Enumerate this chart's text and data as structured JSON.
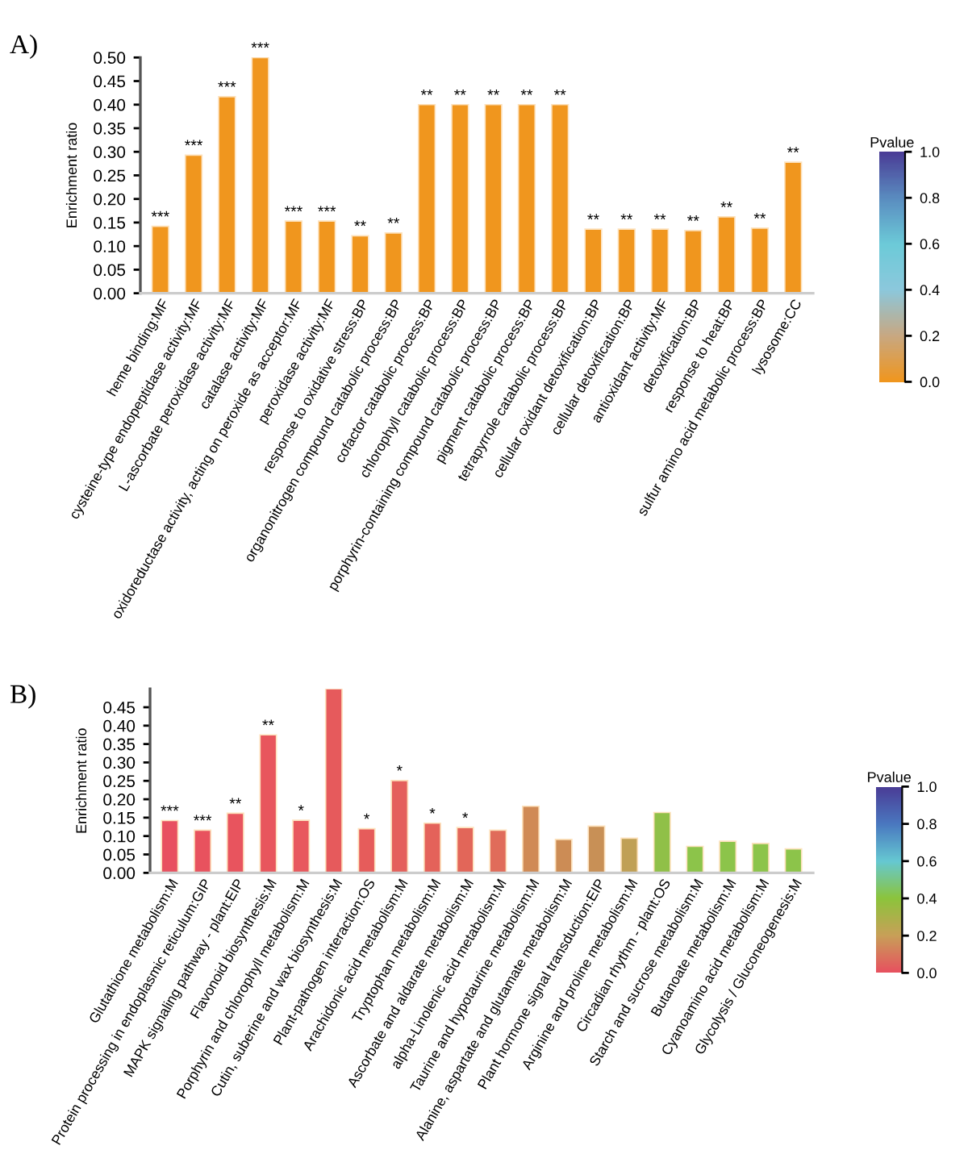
{
  "chart_data": [
    {
      "type": "bar",
      "title": "A)",
      "ylabel": "Enrichment ratio",
      "categories": [
        "heme binding:MF",
        "cysteine-type endopeptidase activity:MF",
        "L-ascorbate peroxidase activity:MF",
        "catalase activity:MF",
        "oxidoreductase activity, acting on peroxide as acceptor:MF",
        "peroxidase activity:MF",
        "response to oxidative stress:BP",
        "organonitrogen compound catabolic process:BP",
        "cofactor catabolic process:BP",
        "chlorophyll catabolic process:BP",
        "porphyrin-containing compound catabolic process:BP",
        "pigment catabolic process:BP",
        "tetrapyrrole catabolic process:BP",
        "cellular oxidant detoxification:BP",
        "cellular detoxification:BP",
        "antioxidant activity:MF",
        "detoxification:BP",
        "response to heat:BP",
        "sulfur amino acid metabolic process:BP",
        "lysosome:CC"
      ],
      "values": [
        0.142,
        0.293,
        0.417,
        0.5,
        0.153,
        0.153,
        0.122,
        0.128,
        0.4,
        0.4,
        0.4,
        0.4,
        0.4,
        0.136,
        0.136,
        0.136,
        0.133,
        0.162,
        0.138,
        0.278
      ],
      "colors": [
        "#f0961e",
        "#f0961e",
        "#f0961e",
        "#f0961e",
        "#f0961e",
        "#f0961e",
        "#f0961e",
        "#f0961e",
        "#f0961e",
        "#f0961e",
        "#f0961e",
        "#f0961e",
        "#f0961e",
        "#f0961e",
        "#f0961e",
        "#f0961e",
        "#f0961e",
        "#f0961e",
        "#f0961e",
        "#f0961e"
      ],
      "ylim": [
        0,
        0.5
      ],
      "yticks": [
        {
          "value": 0,
          "label": "0.00"
        },
        {
          "value": 0.05,
          "label": "0.05"
        },
        {
          "value": 0.1,
          "label": "0.10"
        },
        {
          "value": 0.15,
          "label": "0.15"
        },
        {
          "value": 0.2,
          "label": "0.20"
        },
        {
          "value": 0.25,
          "label": "0.25"
        },
        {
          "value": 0.3,
          "label": "0.30"
        },
        {
          "value": 0.35,
          "label": "0.35"
        },
        {
          "value": 0.4,
          "label": "0.40"
        },
        {
          "value": 0.45,
          "label": "0.45"
        },
        {
          "value": 0.5,
          "label": "0.50"
        }
      ],
      "clabel": "Pvalue",
      "clim": [
        0,
        1
      ],
      "cticks": [
        {
          "value": 0,
          "label": "0.0"
        },
        {
          "value": 0.2,
          "label": "0.2"
        },
        {
          "value": 0.4,
          "label": "0.4"
        },
        {
          "value": 0.6,
          "label": "0.6"
        },
        {
          "value": 0.8,
          "label": "0.8"
        },
        {
          "value": 1,
          "label": "1.0"
        }
      ],
      "grid": false,
      "legend": false,
      "annotations": [
        {
          "text": "***",
          "x": "heme binding:MF",
          "y": 0.142
        },
        {
          "text": "***",
          "x": "cysteine-type endopeptidase activity:MF",
          "y": 0.293
        },
        {
          "text": "***",
          "x": "L-ascorbate peroxidase activity:MF",
          "y": 0.417
        },
        {
          "text": "***",
          "x": "catalase activity:MF",
          "y": 0.5
        },
        {
          "text": "***",
          "x": "oxidoreductase activity, acting on peroxide as acceptor:MF",
          "y": 0.153
        },
        {
          "text": "***",
          "x": "peroxidase activity:MF",
          "y": 0.153
        },
        {
          "text": "**",
          "x": "response to oxidative stress:BP",
          "y": 0.122
        },
        {
          "text": "**",
          "x": "organonitrogen compound catabolic process:BP",
          "y": 0.128
        },
        {
          "text": "**",
          "x": "cofactor catabolic process:BP",
          "y": 0.4
        },
        {
          "text": "**",
          "x": "chlorophyll catabolic process:BP",
          "y": 0.4
        },
        {
          "text": "**",
          "x": "porphyrin-containing compound catabolic process:BP",
          "y": 0.4
        },
        {
          "text": "**",
          "x": "pigment catabolic process:BP",
          "y": 0.4
        },
        {
          "text": "**",
          "x": "tetrapyrrole catabolic process:BP",
          "y": 0.4
        },
        {
          "text": "**",
          "x": "cellular oxidant detoxification:BP",
          "y": 0.136
        },
        {
          "text": "**",
          "x": "cellular detoxification:BP",
          "y": 0.136
        },
        {
          "text": "**",
          "x": "antioxidant activity:MF",
          "y": 0.136
        },
        {
          "text": "**",
          "x": "detoxification:BP",
          "y": 0.133
        },
        {
          "text": "**",
          "x": "response to heat:BP",
          "y": 0.162
        },
        {
          "text": "**",
          "x": "sulfur amino acid metabolic process:BP",
          "y": 0.138
        },
        {
          "text": "**",
          "x": "lysosome:CC",
          "y": 0.278
        }
      ]
    },
    {
      "type": "bar",
      "title": "B)",
      "ylabel": "Enrichment ratio",
      "categories": [
        "Glutathione metabolism:M",
        "Protein processing in endoplasmic reticulum:GIP",
        "MAPK signaling pathway - plant:EIP",
        "Flavonoid biosynthesis:M",
        "Porphyrin and chlorophyll metabolism:M",
        "Cutin, suberine and wax biosynthesis:M",
        "Plant-pathogen interaction:OS",
        "Arachidonic acid metabolism:M",
        "Tryptophan metabolism:M",
        "Ascorbate and aldarate metabolism:M",
        "alpha-Linolenic acid metabolism:M",
        "Taurine and hypotaurine metabolism:M",
        "Alanine, aspartate and glutamate metabolism:M",
        "Plant hormone signal transduction:EIP",
        "Arginine and proline metabolism:M",
        "Circadian rhythm - plant:OS",
        "Starch and sucrose metabolism:M",
        "Butanoate metabolism:M",
        "Cyanoamino acid metabolism:M",
        "Glycolysis / Gluconeogenesis:M"
      ],
      "values": [
        0.142,
        0.116,
        0.162,
        0.375,
        0.143,
        0.5,
        0.12,
        0.251,
        0.135,
        0.123,
        0.116,
        0.181,
        0.091,
        0.127,
        0.094,
        0.164,
        0.072,
        0.086,
        0.08,
        0.065
      ],
      "colors": [
        "#e8505f",
        "#e8525e",
        "#e8545e",
        "#e8565d",
        "#e8585d",
        "#e65a5c",
        "#e65c5b",
        "#e4605b",
        "#e4625a",
        "#e26659",
        "#e06c5a",
        "#d08a55",
        "#cc8c55",
        "#c89056",
        "#c0a055",
        "#90c048",
        "#8cc44a",
        "#8cc44a",
        "#8cc44a",
        "#8cc44a"
      ],
      "ylim": [
        0,
        0.5
      ],
      "yticks": [
        {
          "value": 0,
          "label": "0.00"
        },
        {
          "value": 0.05,
          "label": "0.05"
        },
        {
          "value": 0.1,
          "label": "0.10"
        },
        {
          "value": 0.15,
          "label": "0.15"
        },
        {
          "value": 0.2,
          "label": "0.20"
        },
        {
          "value": 0.25,
          "label": "0.25"
        },
        {
          "value": 0.3,
          "label": "0.30"
        },
        {
          "value": 0.35,
          "label": "0.35"
        },
        {
          "value": 0.4,
          "label": "0.40"
        },
        {
          "value": 0.45,
          "label": "0.45"
        }
      ],
      "clabel": "Pvalue",
      "clim": [
        0,
        1
      ],
      "cticks": [
        {
          "value": 0,
          "label": "0.0"
        },
        {
          "value": 0.2,
          "label": "0.2"
        },
        {
          "value": 0.4,
          "label": "0.4"
        },
        {
          "value": 0.6,
          "label": "0.6"
        },
        {
          "value": 0.8,
          "label": "0.8"
        },
        {
          "value": 1,
          "label": "1.0"
        }
      ],
      "grid": false,
      "legend": false,
      "annotations": [
        {
          "text": "***",
          "x": "Glutathione metabolism:M",
          "y": 0.142
        },
        {
          "text": "***",
          "x": "Protein processing in endoplasmic reticulum:GIP",
          "y": 0.116
        },
        {
          "text": "**",
          "x": "MAPK signaling pathway - plant:EIP",
          "y": 0.162
        },
        {
          "text": "**",
          "x": "Flavonoid biosynthesis:M",
          "y": 0.375
        },
        {
          "text": "*",
          "x": "Porphyrin and chlorophyll metabolism:M",
          "y": 0.143
        },
        {
          "text": "*",
          "x": "Plant-pathogen interaction:OS",
          "y": 0.12
        },
        {
          "text": "*",
          "x": "Arachidonic acid metabolism:M",
          "y": 0.251
        },
        {
          "text": "*",
          "x": "Tryptophan metabolism:M",
          "y": 0.135
        },
        {
          "text": "*",
          "x": "Ascorbate and aldarate metabolism:M",
          "y": 0.123
        }
      ]
    }
  ]
}
